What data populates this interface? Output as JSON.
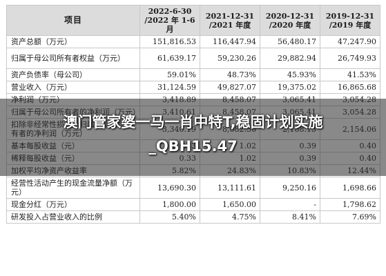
{
  "table": {
    "headers": [
      "项目",
      "2022-6-30\n/2022 年 1-6 月",
      "2021-12-31\n/2021 年度",
      "2020-12-31\n/2020 年度",
      "2019-12-31\n/2019 年度"
    ],
    "header_lines": [
      [
        "项目"
      ],
      [
        "2022-6-30",
        "/2022 年 1-6 月"
      ],
      [
        "2021-12-31",
        "/2021 年度"
      ],
      [
        "2020-12-31",
        "/2020 年度"
      ],
      [
        "2019-12-31",
        "/2019 年度"
      ]
    ],
    "rows": [
      {
        "label": "资产总额（万元）",
        "values": [
          "151,816.53",
          "116,447.94",
          "56,480.17",
          "47,247.90"
        ]
      },
      {
        "label": "归属于母公司所有者权益（万元）",
        "values": [
          "61,639.17",
          "59,230.26",
          "29,882.94",
          "26,749.93"
        ]
      },
      {
        "label": "资产负债率（母公司）",
        "values": [
          "59.01%",
          "48.73%",
          "45.93%",
          "41.53%"
        ]
      },
      {
        "label": "营业收入（万元）",
        "values": [
          "31,124.59",
          "49,827.07",
          "19,375.02",
          "16,865.68"
        ]
      },
      {
        "label": "净利润（万元）",
        "values": [
          "3,418.89",
          "8,458.07",
          "3,065.41",
          "3,054.28"
        ]
      },
      {
        "label": "归属于母公司所有者的净利润（万元）",
        "values": [
          "3,410.61",
          "8,458.07",
          "3,065.41",
          "3,054.28"
        ]
      },
      {
        "label": "扣除非经常性损益后归属于母公司所有者的净利润（万元）",
        "values": [
          "3,340.19",
          "8,082.56",
          "2,188.13",
          "2,154.06"
        ]
      },
      {
        "label": "基本每股收益（元）",
        "values": [
          "0.33",
          "1.02",
          "0.39",
          "0.40"
        ]
      },
      {
        "label": "稀释每股收益（元）",
        "values": [
          "0.33",
          "1.02",
          "0.39",
          "0.40"
        ]
      },
      {
        "label": "加权平均净资产收益率",
        "values": [
          "5.82%",
          "24.83%",
          "10.83%",
          "12.44%"
        ]
      },
      {
        "label": "经营性活动产生的现金流量净额（万元）",
        "values": [
          "13,690.30",
          "13,111.61",
          "9,250.16",
          "1,698.66"
        ]
      },
      {
        "label": "现金分红（万元）",
        "values": [
          "1,800.00",
          "1,650.00",
          "-",
          "1,798.62"
        ]
      },
      {
        "label": "研发投入占营业收入的比例",
        "values": [
          "5.40%",
          "4.75%",
          "8.41%",
          "7.69%"
        ]
      }
    ]
  },
  "overlay": {
    "title": "澳门管家婆一马一肖中特T,稳固计划实施_QBH15.47"
  }
}
